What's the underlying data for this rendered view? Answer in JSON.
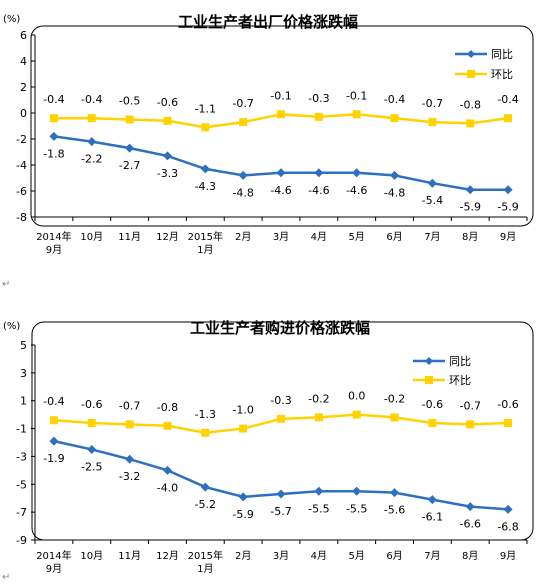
{
  "colors": {
    "series1": "#2E6FC0",
    "series2": "#FFD200",
    "axis": "#000000"
  },
  "paragraph_mark": "↵",
  "chart_data": [
    {
      "type": "line",
      "title": "工业生产者出厂价格涨跌幅",
      "unit": "(%)",
      "ylim": [
        -8,
        6
      ],
      "yticks": [
        6,
        4,
        2,
        0,
        -2,
        -4,
        -6,
        -8
      ],
      "categories": [
        "2014年\n9月",
        "10月",
        "11月",
        "12月",
        "2015年\n1月",
        "2月",
        "3月",
        "4月",
        "5月",
        "6月",
        "7月",
        "8月",
        "9月"
      ],
      "legend_position": "top-right",
      "grid": false,
      "series": [
        {
          "name": "同比",
          "values": [
            -1.8,
            -2.2,
            -2.7,
            -3.3,
            -4.3,
            -4.8,
            -4.6,
            -4.6,
            -4.6,
            -4.8,
            -5.4,
            -5.9,
            -5.9
          ]
        },
        {
          "name": "环比",
          "values": [
            -0.4,
            -0.4,
            -0.5,
            -0.6,
            -1.1,
            -0.7,
            -0.1,
            -0.3,
            -0.1,
            -0.4,
            -0.7,
            -0.8,
            -0.4
          ]
        }
      ]
    },
    {
      "type": "line",
      "title": "工业生产者购进价格涨跌幅",
      "unit": "(%)",
      "ylim": [
        -9,
        5
      ],
      "yticks": [
        5,
        3,
        1,
        -1,
        -3,
        -5,
        -7,
        -9
      ],
      "categories": [
        "2014年\n9月",
        "10月",
        "11月",
        "12月",
        "2015年\n1月",
        "2月",
        "3月",
        "4月",
        "5月",
        "6月",
        "7月",
        "8月",
        "9月"
      ],
      "legend_position": "top-right",
      "grid": false,
      "series": [
        {
          "name": "同比",
          "values": [
            -1.9,
            -2.5,
            -3.2,
            -4.0,
            -5.2,
            -5.9,
            -5.7,
            -5.5,
            -5.5,
            -5.6,
            -6.1,
            -6.6,
            -6.8
          ]
        },
        {
          "name": "环比",
          "values": [
            -0.4,
            -0.6,
            -0.7,
            -0.8,
            -1.3,
            -1.0,
            -0.3,
            -0.2,
            0.0,
            -0.2,
            -0.6,
            -0.7,
            -0.6
          ]
        }
      ]
    }
  ]
}
